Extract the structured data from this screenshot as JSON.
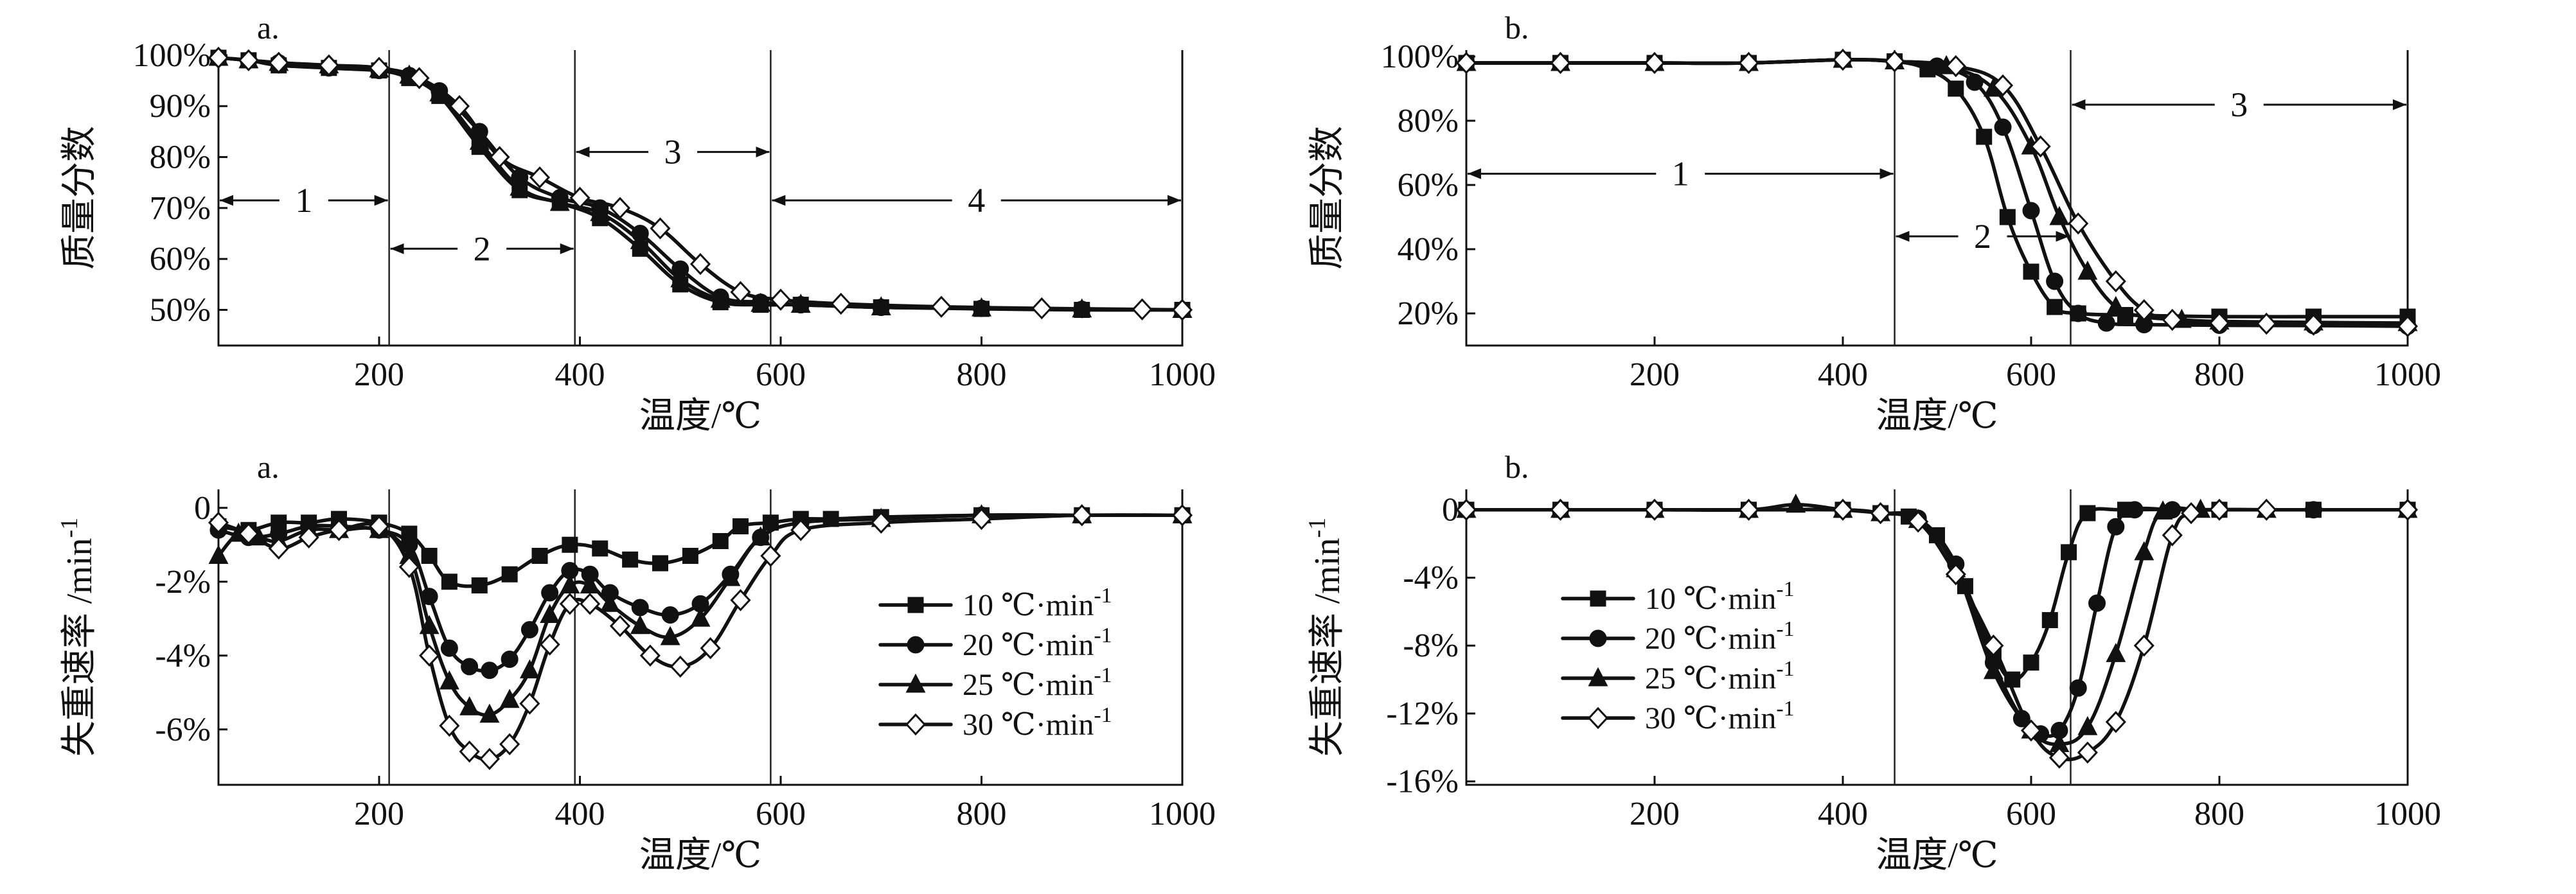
{
  "chart_data": [
    {
      "id": "a-top",
      "type": "line",
      "panel_label": "a.",
      "xlabel": "温度/℃",
      "ylabel": "质量分数",
      "xlim": [
        40,
        1000
      ],
      "ylim": [
        43,
        101
      ],
      "xticks": [
        200,
        400,
        600,
        800,
        1000
      ],
      "yticks": [
        50,
        60,
        70,
        80,
        90,
        100
      ],
      "x_tick_labels": [
        "200",
        "400",
        "600",
        "800",
        "1000"
      ],
      "y_tick_labels": [
        "50%",
        "60%",
        "70%",
        "80%",
        "90%",
        "100%"
      ],
      "dividers": [
        210,
        395,
        590
      ],
      "regions": [
        {
          "label": "1",
          "from": 40,
          "to": 210,
          "y": 71.5
        },
        {
          "label": "2",
          "from": 210,
          "to": 395,
          "y": 62
        },
        {
          "label": "3",
          "from": 395,
          "to": 590,
          "y": 81
        },
        {
          "label": "4",
          "from": 590,
          "to": 1000,
          "y": 71.5
        }
      ],
      "series": [
        {
          "name": "10 ℃·min⁻¹",
          "marker": "square",
          "x": [
            40,
            70,
            100,
            150,
            200,
            230,
            260,
            300,
            340,
            380,
            420,
            460,
            500,
            540,
            580,
            620,
            700,
            800,
            900,
            1000
          ],
          "y": [
            99.5,
            99,
            98,
            97.5,
            97,
            95.5,
            92,
            82,
            73.5,
            71,
            68,
            62,
            55,
            51.5,
            51,
            51,
            50.5,
            50.2,
            50,
            50
          ]
        },
        {
          "name": "20 ℃·min⁻¹",
          "marker": "circle",
          "x": [
            40,
            70,
            100,
            150,
            200,
            230,
            260,
            300,
            340,
            380,
            420,
            460,
            500,
            540,
            580,
            620,
            700,
            800,
            900,
            1000
          ],
          "y": [
            99.5,
            99,
            98.5,
            97.5,
            97,
            96,
            93,
            85,
            76,
            72,
            70,
            65,
            58,
            52.5,
            51.5,
            51,
            50.5,
            50.3,
            50.1,
            50
          ]
        },
        {
          "name": "25 ℃·min⁻¹",
          "marker": "triangle",
          "x": [
            40,
            70,
            100,
            150,
            200,
            230,
            260,
            300,
            340,
            380,
            420,
            460,
            500,
            540,
            580,
            620,
            700,
            800,
            900,
            1000
          ],
          "y": [
            99.5,
            99,
            98.5,
            98,
            97.2,
            96,
            92.5,
            83,
            74,
            71,
            69,
            63.5,
            56,
            52,
            51.2,
            51,
            50.5,
            50.3,
            50.1,
            50
          ]
        },
        {
          "name": "30 ℃·min⁻¹",
          "marker": "diamond",
          "x": [
            40,
            70,
            100,
            150,
            200,
            240,
            280,
            320,
            360,
            400,
            440,
            480,
            520,
            560,
            600,
            660,
            760,
            860,
            960,
            1000
          ],
          "y": [
            99.5,
            99,
            98.5,
            98,
            97.5,
            95.5,
            90,
            80,
            76,
            72,
            70,
            66,
            59,
            53.5,
            52,
            51.2,
            50.6,
            50.3,
            50.1,
            50
          ]
        }
      ]
    },
    {
      "id": "b-top",
      "type": "line",
      "panel_label": "b.",
      "xlabel": "温度/℃",
      "ylabel": "质量分数",
      "xlim": [
        0,
        1000
      ],
      "ylim": [
        10,
        102
      ],
      "xticks": [
        200,
        400,
        600,
        800,
        1000
      ],
      "yticks": [
        20,
        40,
        60,
        80,
        100
      ],
      "x_tick_labels": [
        "200",
        "400",
        "600",
        "800",
        "1000"
      ],
      "y_tick_labels": [
        "20%",
        "40%",
        "60%",
        "80%",
        "100%"
      ],
      "dividers": [
        455,
        642
      ],
      "regions": [
        {
          "label": "1",
          "from": 0,
          "to": 455,
          "y": 63.5
        },
        {
          "label": "2",
          "from": 455,
          "to": 642,
          "y": 44
        },
        {
          "label": "3",
          "from": 642,
          "to": 1000,
          "y": 85
        }
      ],
      "series": [
        {
          "name": "10 ℃·min⁻¹",
          "marker": "square",
          "x": [
            0,
            100,
            200,
            300,
            400,
            455,
            490,
            520,
            550,
            575,
            600,
            625,
            650,
            700,
            800,
            900,
            1000
          ],
          "y": [
            98,
            98,
            98,
            98,
            99,
            98.5,
            96,
            90,
            75,
            50,
            33,
            22,
            20,
            19.5,
            19,
            19,
            19
          ]
        },
        {
          "name": "20 ℃·min⁻¹",
          "marker": "circle",
          "x": [
            0,
            100,
            200,
            300,
            400,
            455,
            500,
            540,
            570,
            600,
            625,
            650,
            680,
            720,
            800,
            900,
            1000
          ],
          "y": [
            98,
            98,
            98,
            98,
            99,
            98.5,
            97,
            92,
            78,
            52,
            30,
            20,
            17,
            16.5,
            16.3,
            16.2,
            16
          ]
        },
        {
          "name": "25 ℃·min⁻¹",
          "marker": "triangle",
          "x": [
            0,
            100,
            200,
            300,
            400,
            455,
            510,
            560,
            600,
            630,
            660,
            690,
            720,
            760,
            800,
            900,
            1000
          ],
          "y": [
            98,
            98,
            98,
            98,
            99,
            98.5,
            97,
            90,
            72,
            50,
            33,
            22,
            19,
            18,
            17.5,
            17.2,
            17
          ]
        },
        {
          "name": "30 ℃·min⁻¹",
          "marker": "diamond",
          "x": [
            0,
            100,
            200,
            300,
            400,
            455,
            520,
            570,
            610,
            650,
            690,
            720,
            750,
            800,
            850,
            900,
            1000
          ],
          "y": [
            98,
            98,
            98,
            98,
            99,
            98.5,
            97,
            91,
            72,
            48,
            30,
            21,
            18,
            17,
            16.8,
            16.5,
            16
          ]
        }
      ]
    },
    {
      "id": "a-bottom",
      "type": "line",
      "panel_label": "a.",
      "xlabel": "温度/℃",
      "ylabel": "失重速率 /min",
      "ylabel_sup": "-1",
      "xlim": [
        40,
        1000
      ],
      "ylim": [
        -7.5,
        0.5
      ],
      "xticks": [
        200,
        400,
        600,
        800,
        1000
      ],
      "yticks": [
        0,
        -2,
        -4,
        -6
      ],
      "x_tick_labels": [
        "200",
        "400",
        "600",
        "800",
        "1000"
      ],
      "y_tick_labels": [
        "0",
        "-2%",
        "-4%",
        "-6%"
      ],
      "dividers": [
        210,
        395,
        590
      ],
      "legend": [
        "10 ℃·min",
        "20 ℃·min",
        "25 ℃·min",
        "30 ℃·min"
      ],
      "legend_sup": "-1",
      "series": [
        {
          "name": "10 ℃·min⁻¹",
          "marker": "square",
          "x": [
            40,
            70,
            100,
            130,
            160,
            200,
            230,
            250,
            270,
            300,
            330,
            360,
            390,
            420,
            450,
            480,
            510,
            540,
            560,
            590,
            620,
            650,
            700,
            800,
            900,
            1000
          ],
          "y": [
            -0.5,
            -0.6,
            -0.4,
            -0.4,
            -0.3,
            -0.4,
            -0.7,
            -1.3,
            -2.0,
            -2.1,
            -1.8,
            -1.3,
            -1.0,
            -1.1,
            -1.4,
            -1.5,
            -1.3,
            -0.9,
            -0.5,
            -0.4,
            -0.3,
            -0.3,
            -0.25,
            -0.2,
            -0.2,
            -0.2
          ]
        },
        {
          "name": "20 ℃·min⁻¹",
          "marker": "circle",
          "x": [
            40,
            70,
            100,
            130,
            160,
            200,
            230,
            250,
            270,
            290,
            310,
            330,
            350,
            370,
            390,
            410,
            430,
            460,
            490,
            520,
            550,
            580,
            620,
            700,
            800,
            900,
            1000
          ],
          "y": [
            -0.6,
            -0.8,
            -0.7,
            -0.5,
            -0.5,
            -0.6,
            -1.0,
            -2.4,
            -3.8,
            -4.3,
            -4.4,
            -4.1,
            -3.3,
            -2.3,
            -1.7,
            -1.8,
            -2.3,
            -2.7,
            -2.9,
            -2.6,
            -1.8,
            -0.8,
            -0.4,
            -0.3,
            -0.2,
            -0.2,
            -0.2
          ]
        },
        {
          "name": "25 ℃·min⁻¹",
          "marker": "triangle",
          "x": [
            40,
            60,
            80,
            100,
            130,
            160,
            200,
            230,
            250,
            270,
            290,
            310,
            330,
            350,
            370,
            390,
            410,
            430,
            460,
            490,
            520,
            550,
            580,
            620,
            700,
            800,
            900,
            1000
          ],
          "y": [
            -1.3,
            -0.7,
            -0.8,
            -0.9,
            -0.6,
            -0.6,
            -0.6,
            -1.3,
            -3.2,
            -4.7,
            -5.4,
            -5.6,
            -5.2,
            -4.4,
            -2.9,
            -2.1,
            -2.1,
            -2.6,
            -3.2,
            -3.5,
            -3.0,
            -1.9,
            -0.8,
            -0.4,
            -0.3,
            -0.2,
            -0.2,
            -0.2
          ]
        },
        {
          "name": "30 ℃·min⁻¹",
          "marker": "diamond",
          "x": [
            40,
            70,
            100,
            130,
            160,
            200,
            230,
            250,
            270,
            290,
            310,
            330,
            350,
            370,
            390,
            410,
            440,
            470,
            500,
            530,
            560,
            590,
            620,
            700,
            800,
            900,
            1000
          ],
          "y": [
            -0.4,
            -0.7,
            -1.1,
            -0.8,
            -0.6,
            -0.5,
            -1.6,
            -4.0,
            -5.9,
            -6.6,
            -6.8,
            -6.4,
            -5.3,
            -3.7,
            -2.6,
            -2.6,
            -3.2,
            -4.0,
            -4.3,
            -3.8,
            -2.5,
            -1.3,
            -0.6,
            -0.4,
            -0.3,
            -0.2,
            -0.2
          ]
        }
      ]
    },
    {
      "id": "b-bottom",
      "type": "line",
      "panel_label": "b.",
      "xlabel": "温度/℃",
      "ylabel": "失重速率 /min",
      "ylabel_sup": "-1",
      "xlim": [
        0,
        1000
      ],
      "ylim": [
        -16.2,
        1.2
      ],
      "xticks": [
        200,
        400,
        600,
        800,
        1000
      ],
      "yticks": [
        0,
        -4,
        -8,
        -12,
        -16
      ],
      "x_tick_labels": [
        "200",
        "400",
        "600",
        "800",
        "1000"
      ],
      "y_tick_labels": [
        "0",
        "-4%",
        "-8%",
        "-12%",
        "-16%"
      ],
      "dividers": [
        455,
        642
      ],
      "legend": [
        "10 ℃·min",
        "20 ℃·min",
        "25 ℃·min",
        "30 ℃·min"
      ],
      "legend_sup": "-1",
      "series": [
        {
          "name": "10 ℃·min⁻¹",
          "marker": "square",
          "x": [
            0,
            100,
            200,
            300,
            400,
            440,
            470,
            500,
            530,
            560,
            580,
            600,
            620,
            640,
            660,
            700,
            800,
            900,
            1000
          ],
          "y": [
            0,
            0,
            0,
            0,
            0,
            -0.2,
            -0.4,
            -1.5,
            -4.5,
            -8.5,
            -10.0,
            -9.0,
            -6.5,
            -2.5,
            -0.2,
            0,
            0,
            0,
            0
          ]
        },
        {
          "name": "20 ℃·min⁻¹",
          "marker": "circle",
          "x": [
            0,
            100,
            200,
            300,
            400,
            440,
            480,
            520,
            560,
            590,
            610,
            630,
            650,
            670,
            690,
            710,
            750,
            800,
            900,
            1000
          ],
          "y": [
            0,
            0,
            0,
            0,
            0,
            -0.2,
            -0.5,
            -3.2,
            -9.0,
            -12.3,
            -13.2,
            -13.0,
            -10.5,
            -5.5,
            -1.0,
            0,
            0,
            0,
            0,
            0
          ]
        },
        {
          "name": "25 ℃·min⁻¹",
          "marker": "triangle",
          "x": [
            0,
            100,
            200,
            300,
            350,
            400,
            440,
            480,
            520,
            560,
            600,
            630,
            660,
            690,
            720,
            740,
            780,
            850,
            1000
          ],
          "y": [
            0,
            0,
            0,
            0,
            0.3,
            0,
            -0.2,
            -0.6,
            -3.5,
            -9.5,
            -13.0,
            -13.8,
            -12.8,
            -8.5,
            -2.5,
            -0.1,
            0,
            0,
            0
          ]
        },
        {
          "name": "30 ℃·min⁻¹",
          "marker": "diamond",
          "x": [
            0,
            100,
            200,
            300,
            400,
            440,
            480,
            520,
            560,
            600,
            630,
            660,
            690,
            720,
            750,
            770,
            800,
            850,
            1000
          ],
          "y": [
            0,
            0,
            0,
            0,
            0,
            -0.2,
            -0.7,
            -3.8,
            -8.0,
            -13.0,
            -14.6,
            -14.3,
            -12.5,
            -8.0,
            -1.5,
            -0.2,
            0,
            0,
            0
          ]
        }
      ]
    }
  ]
}
